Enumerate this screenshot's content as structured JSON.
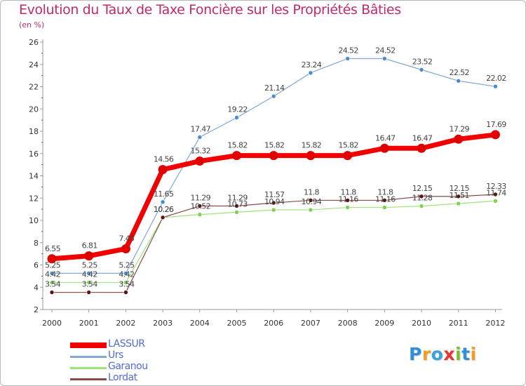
{
  "title": "Evolution du Taux de Taxe Foncière sur les Propriétés Bâties",
  "subtitle": "(en %)",
  "logo": {
    "text": "Proxiti",
    "letters": [
      {
        "ch": "P",
        "color": "#2f8fd8"
      },
      {
        "ch": "r",
        "color": "#f0a020"
      },
      {
        "ch": "o",
        "color": "#3aa0e0"
      },
      {
        "ch": "x",
        "color": "#e8342e"
      },
      {
        "ch": "i",
        "color": "#7cbf2a"
      },
      {
        "ch": "t",
        "color": "#2f8fd8"
      },
      {
        "ch": "i",
        "color": "#f0a020"
      }
    ]
  },
  "chart_data": {
    "type": "line",
    "title": "Evolution du Taux de Taxe Foncière sur les Propriétés Bâties",
    "ylabel": "(en %)",
    "xlabel": "",
    "categories": [
      "2000",
      "2001",
      "2002",
      "2003",
      "2004",
      "2005",
      "2006",
      "2007",
      "2008",
      "2009",
      "2010",
      "2011",
      "2012"
    ],
    "ylim": [
      2,
      26
    ],
    "yticks": [
      "2",
      "4",
      "6",
      "8",
      "10",
      "12",
      "14",
      "16",
      "18",
      "20",
      "22",
      "24",
      "26"
    ],
    "grid": false,
    "legend_position": "bottom-left",
    "series": [
      {
        "name": "LASSUR",
        "color": "#f00000",
        "marker_color": "#e00000",
        "values": [
          6.55,
          6.81,
          7.45,
          14.56,
          15.32,
          15.82,
          15.82,
          15.82,
          15.82,
          16.47,
          16.47,
          17.29,
          17.69
        ],
        "labels": [
          "6.55",
          "6.81",
          "7.45",
          "14.56",
          "15.32",
          "15.82",
          "15.82",
          "15.82",
          "15.82",
          "16.47",
          "16.47",
          "17.29",
          "17.69"
        ]
      },
      {
        "name": "Urs",
        "color": "#7fa9d3",
        "marker_color": "#4a8ad0",
        "values": [
          5.25,
          5.25,
          5.25,
          11.65,
          17.47,
          19.22,
          21.14,
          23.24,
          24.52,
          24.52,
          23.52,
          22.52,
          22.02
        ],
        "labels": [
          "5.25",
          "5.25",
          "5.25",
          "11.65",
          "17.47",
          "19.22",
          "21.14",
          "23.24",
          "24.52",
          "24.52",
          "23.52",
          "22.52",
          "22.02"
        ]
      },
      {
        "name": "Garanou",
        "color": "#9ee27a",
        "marker_color": "#7ed050",
        "values": [
          4.42,
          4.42,
          4.42,
          10.26,
          10.52,
          10.73,
          10.94,
          10.94,
          11.16,
          11.16,
          11.28,
          11.51,
          11.74
        ],
        "labels": [
          "4.42",
          "4.42",
          "4.42",
          "10.26",
          "10.52",
          "10.73",
          "10.94",
          "10.94",
          "11.16",
          "11.16",
          "11.28",
          "11.51",
          "11.74"
        ]
      },
      {
        "name": "Lordat",
        "color": "#8a4a4a",
        "marker_color": "#5a1414",
        "values": [
          3.54,
          3.54,
          3.54,
          10.26,
          11.29,
          11.29,
          11.57,
          11.8,
          11.8,
          11.8,
          12.15,
          12.15,
          12.33
        ],
        "labels": [
          "3.54",
          "3.54",
          "3.54",
          "10.26",
          "11.29",
          "11.29",
          "11.57",
          "11.8",
          "11.8",
          "11.8",
          "12.15",
          "12.15",
          "12.33"
        ]
      }
    ]
  }
}
